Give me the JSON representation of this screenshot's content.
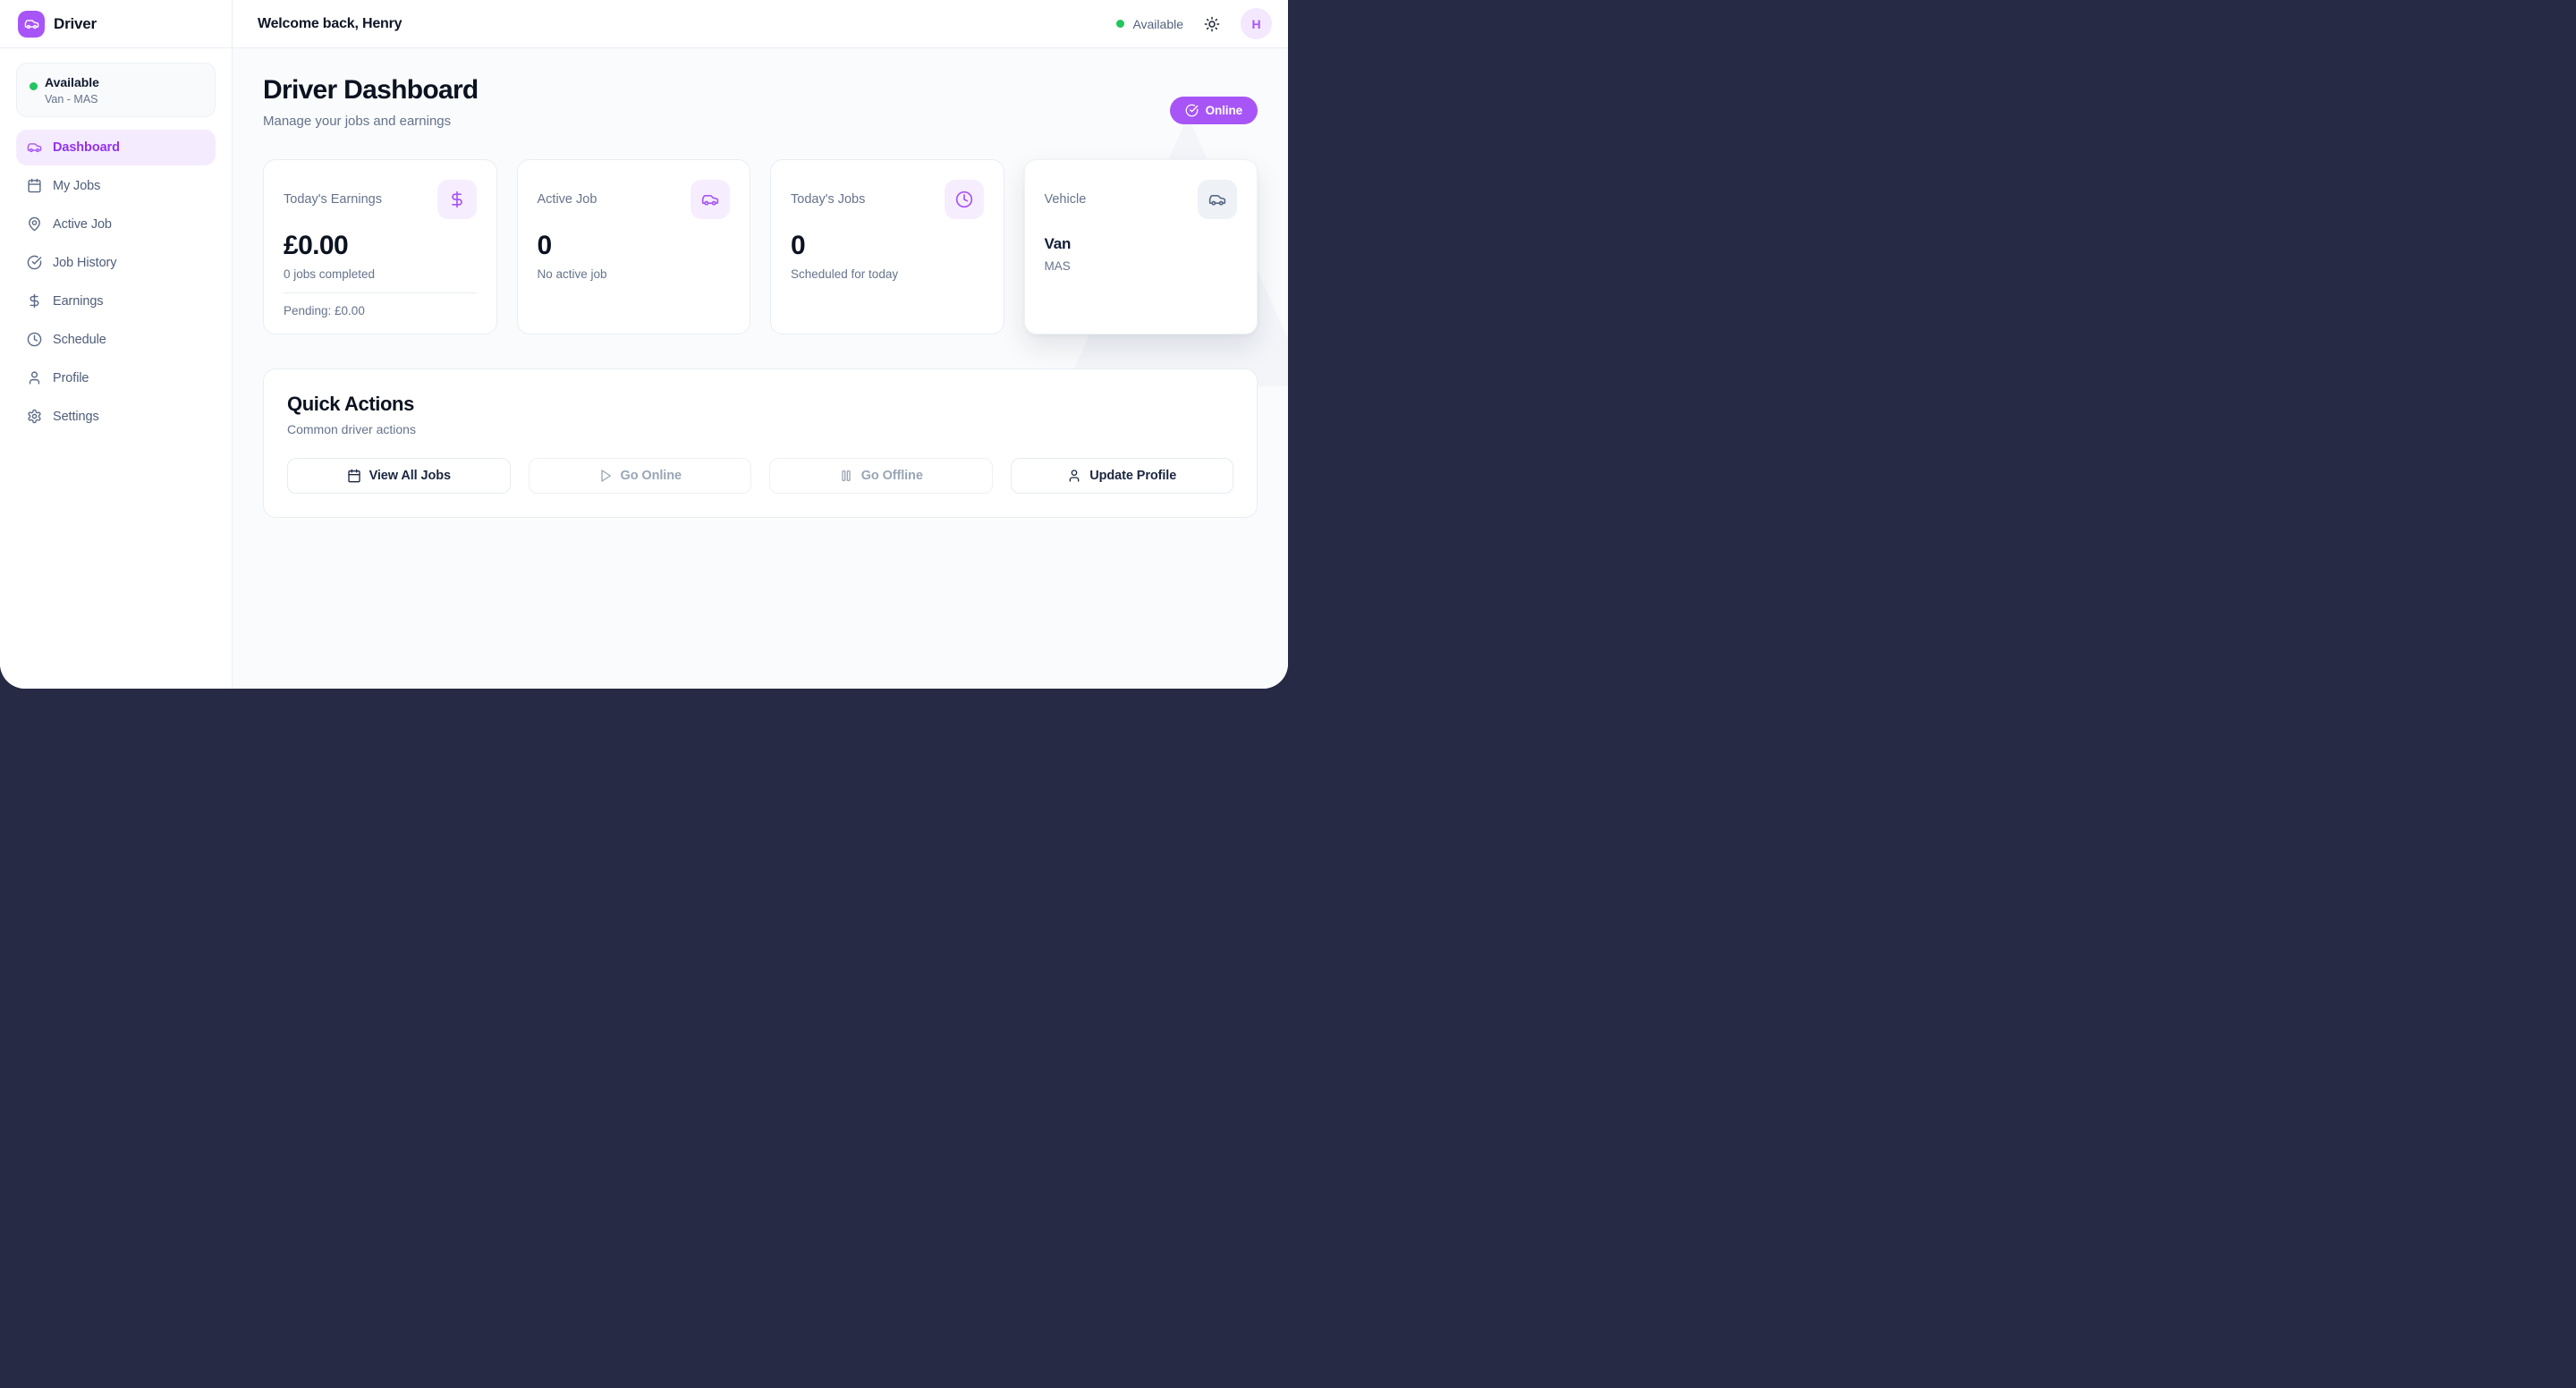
{
  "app": {
    "name": "Driver"
  },
  "header": {
    "welcome": "Welcome back, Henry",
    "status_label": "Available",
    "avatar_initial": "H"
  },
  "sidebar": {
    "status_card": {
      "title": "Available",
      "subtitle": "Van - MAS"
    },
    "items": [
      {
        "label": "Dashboard",
        "icon": "car",
        "active": true
      },
      {
        "label": "My Jobs",
        "icon": "calendar",
        "active": false
      },
      {
        "label": "Active Job",
        "icon": "map-pin",
        "active": false
      },
      {
        "label": "Job History",
        "icon": "check-circle",
        "active": false
      },
      {
        "label": "Earnings",
        "icon": "dollar",
        "active": false
      },
      {
        "label": "Schedule",
        "icon": "clock",
        "active": false
      },
      {
        "label": "Profile",
        "icon": "user",
        "active": false
      },
      {
        "label": "Settings",
        "icon": "gear",
        "active": false
      }
    ]
  },
  "page": {
    "title": "Driver Dashboard",
    "subtitle": "Manage your jobs and earnings",
    "online_badge": "Online"
  },
  "stats": [
    {
      "label": "Today's Earnings",
      "value": "£0.00",
      "sub": "0 jobs completed",
      "footer": "Pending: £0.00",
      "icon": "dollar",
      "theme": "purple",
      "small_value": false,
      "elevated": false
    },
    {
      "label": "Active Job",
      "value": "0",
      "sub": "No active job",
      "footer": null,
      "icon": "car",
      "theme": "purple",
      "small_value": false,
      "elevated": false
    },
    {
      "label": "Today's Jobs",
      "value": "0",
      "sub": "Scheduled for today",
      "footer": null,
      "icon": "clock",
      "theme": "purple",
      "small_value": false,
      "elevated": false
    },
    {
      "label": "Vehicle",
      "value": "Van",
      "sub": "MAS",
      "footer": null,
      "icon": "car",
      "theme": "gray",
      "small_value": true,
      "elevated": true
    }
  ],
  "quick_actions": {
    "title": "Quick Actions",
    "subtitle": "Common driver actions",
    "buttons": [
      {
        "label": "View All Jobs",
        "icon": "calendar",
        "enabled": true
      },
      {
        "label": "Go Online",
        "icon": "play",
        "enabled": false
      },
      {
        "label": "Go Offline",
        "icon": "pause",
        "enabled": false
      },
      {
        "label": "Update Profile",
        "icon": "user",
        "enabled": true
      }
    ]
  },
  "colors": {
    "accent": "#a855f7",
    "accent_deep": "#9333ea",
    "green": "#22c55e",
    "backdrop": "#262a45"
  }
}
